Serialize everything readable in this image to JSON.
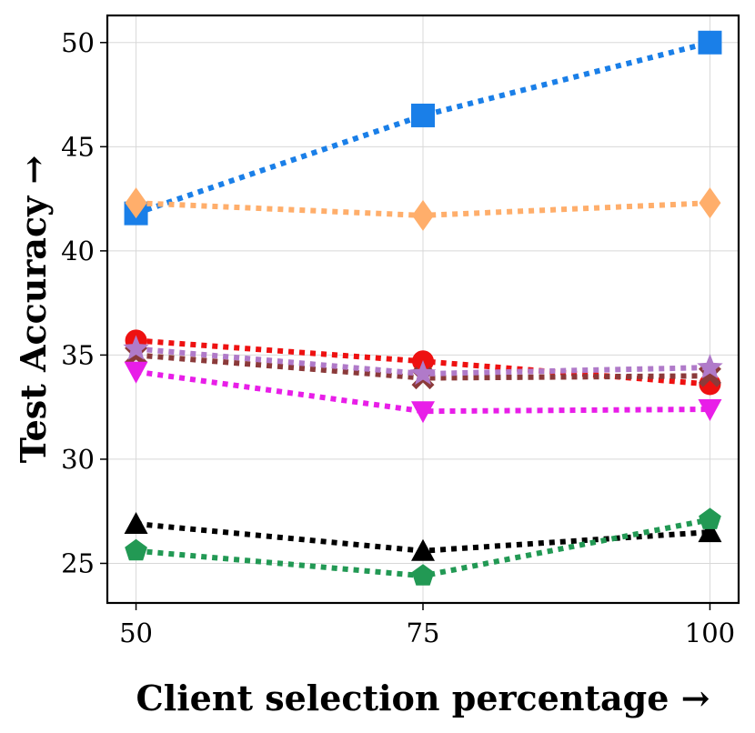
{
  "chart_data": {
    "type": "line",
    "title": "",
    "xlabel": "Client selection percentage →",
    "ylabel": "Test Accuracy →",
    "x": [
      50,
      75,
      100
    ],
    "x_ticks": [
      "50",
      "75",
      "100"
    ],
    "y_ticks": [
      "25",
      "30",
      "35",
      "40",
      "45",
      "50"
    ],
    "y_tick_values": [
      25,
      30,
      35,
      40,
      45,
      50
    ],
    "xlim": [
      47.5,
      102.5
    ],
    "ylim": [
      23.1,
      51.3
    ],
    "grid": true,
    "line_style": "dotted",
    "series": [
      {
        "name": "blue-square",
        "color": "#1a7fe8",
        "marker": "square",
        "values": [
          41.8,
          46.5,
          50.0
        ]
      },
      {
        "name": "orange-diamond",
        "color": "#ffae6b",
        "marker": "diamond",
        "values": [
          42.3,
          41.7,
          42.3
        ]
      },
      {
        "name": "red-circle",
        "color": "#ee1111",
        "marker": "circle",
        "values": [
          35.7,
          34.7,
          33.6
        ]
      },
      {
        "name": "brown-x",
        "color": "#8b3a3a",
        "marker": "x",
        "values": [
          35.0,
          33.9,
          34.0
        ]
      },
      {
        "name": "purple-star",
        "color": "#b07ac9",
        "marker": "star",
        "values": [
          35.3,
          34.1,
          34.4
        ]
      },
      {
        "name": "magenta-triangle-down",
        "color": "#e81ee8",
        "marker": "triangle-down",
        "values": [
          34.2,
          32.3,
          32.4
        ]
      },
      {
        "name": "black-triangle-up",
        "color": "#000000",
        "marker": "triangle-up",
        "values": [
          26.9,
          25.6,
          26.5
        ]
      },
      {
        "name": "green-pentagon",
        "color": "#229954",
        "marker": "pentagon",
        "values": [
          25.6,
          24.4,
          27.1
        ]
      }
    ]
  }
}
